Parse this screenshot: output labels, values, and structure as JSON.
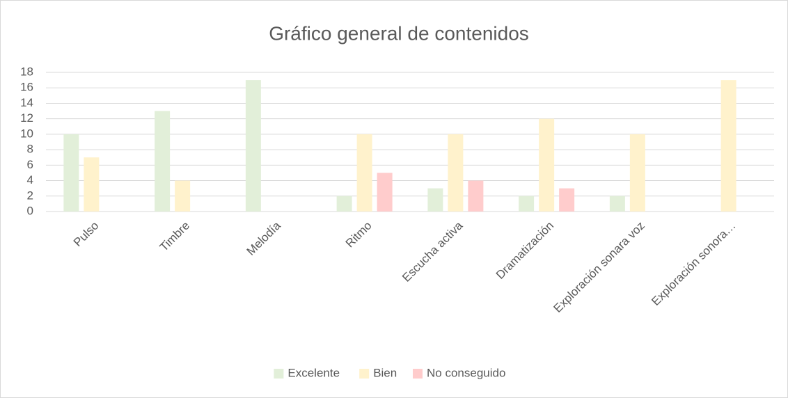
{
  "chart_data": {
    "type": "bar",
    "title": "Gráfico general de contenidos",
    "categories": [
      "Pulso",
      "Timbre",
      "Melodía",
      "Ritmo",
      "Escucha activa",
      "Dramatización",
      "Exploración sonara voz",
      "Exploración sonora…"
    ],
    "series": [
      {
        "name": "Excelente",
        "color": "#e2efd9",
        "values": [
          10,
          13,
          17,
          2,
          3,
          2,
          2,
          0
        ]
      },
      {
        "name": "Bien",
        "color": "#fff2cc",
        "values": [
          7,
          4,
          0,
          10,
          10,
          12,
          10,
          17
        ]
      },
      {
        "name": "No conseguido",
        "color": "#ffcccc",
        "values": [
          0,
          0,
          0,
          5,
          4,
          3,
          0,
          0
        ]
      }
    ],
    "ylim": [
      0,
      18
    ],
    "yticks": [
      0,
      2,
      4,
      6,
      8,
      10,
      12,
      14,
      16,
      18
    ],
    "grid": true,
    "legend": "bottom"
  }
}
